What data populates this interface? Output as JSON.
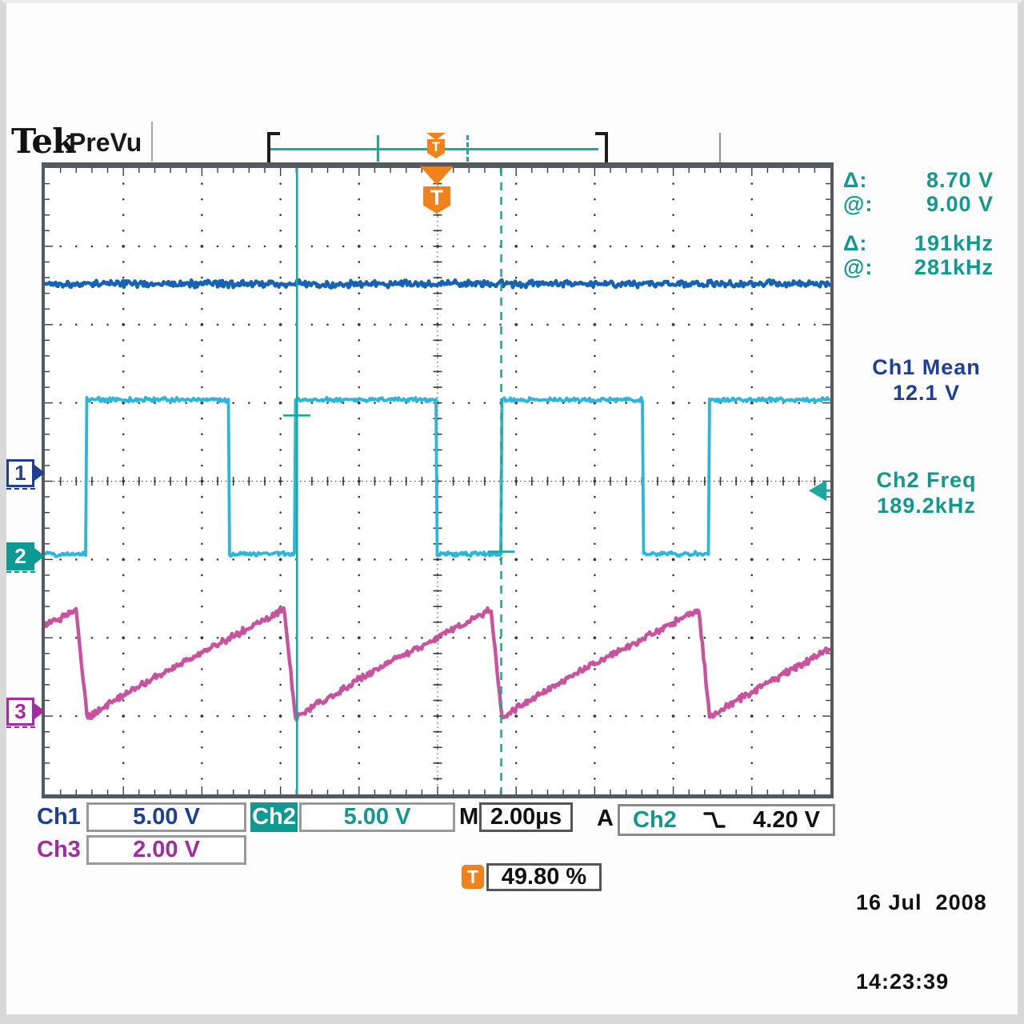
{
  "header": {
    "logo": "Tek",
    "mode": "PreVu"
  },
  "record_view": {
    "trigger_icon": "T"
  },
  "trigger_marker": {
    "icon_label": "T"
  },
  "cursor_readout": {
    "rows": [
      {
        "label": "Δ:",
        "value": "8.70 V"
      },
      {
        "label": "@:",
        "value": "9.00 V"
      },
      {
        "label": "Δ:",
        "value": "191kHz"
      },
      {
        "label": "@:",
        "value": "281kHz"
      }
    ]
  },
  "measurements": [
    {
      "label": "Ch1 Mean",
      "value": "12.1 V"
    },
    {
      "label": "Ch2 Freq",
      "value": "189.2kHz"
    }
  ],
  "left_markers": [
    {
      "label": "1"
    },
    {
      "label": "2"
    },
    {
      "label": "3"
    }
  ],
  "readout_bar": {
    "ch1_label": "Ch1",
    "ch1_scale": "5.00 V",
    "ch2_label": "Ch2",
    "ch2_scale": "5.00 V",
    "ch3_label": "Ch3",
    "ch3_scale": "2.00 V",
    "main_label": "M",
    "main_scale": "2.00µs",
    "trigger_label": "A",
    "trigger_source": "Ch2",
    "trigger_slope_icon": "falling-edge",
    "trigger_level": "4.20 V"
  },
  "trigger_status": {
    "icon_label": "T",
    "position": "49.80 %"
  },
  "datetime": {
    "date": "16 Jul  2008",
    "time": "14:23:39"
  },
  "colors": {
    "ch1_trace": "#1663b5",
    "ch1_text": "#1d3f94",
    "ch2_trace": "#2cb6dc",
    "teal_ui": "#0d9a92",
    "teal_text": "#12998e",
    "ch3_trace": "#c9519e",
    "ch3_text": "#a62ba0",
    "orange": "#f0821e",
    "cursor": "#1aa79c",
    "cursor_dashed": "#23aa90"
  },
  "chart_data": {
    "type": "line",
    "title": "Tek PreVu oscilloscope capture: Ch1 DC rail, Ch2 square wave, Ch3 sawtooth",
    "x_units": "µs",
    "time_per_div_us": 2.0,
    "divisions_x": 10,
    "divisions_y": 8,
    "trigger_position_pct": 49.8,
    "series": [
      {
        "name": "Ch1",
        "kind": "dc",
        "volts_per_div": 5.0,
        "ground_div_below_center": -0.1,
        "level_v": 12.1,
        "noise_v": 0.26,
        "color_key": "ch1_trace"
      },
      {
        "name": "Ch2",
        "kind": "square",
        "volts_per_div": 5.0,
        "ground_div_below_center": 0.96,
        "high_v": 10.0,
        "low_v": 0.15,
        "initial_state": "low",
        "rise_times_us": [
          -8.94,
          -3.62,
          1.62,
          6.92
        ],
        "fall_times_us": [
          -5.3,
          -0.04,
          5.24
        ],
        "frequency_khz": 189.2,
        "noise_v": 0.17,
        "color_key": "ch2_trace"
      },
      {
        "name": "Ch3",
        "kind": "sawtooth",
        "volts_per_div": 2.0,
        "ground_div_below_center": 2.94,
        "peak_v": 2.6,
        "trough_v": -0.18,
        "fall_times_us": [
          -9.2,
          -3.9,
          1.36,
          6.65
        ],
        "fall_duration_us": 0.28,
        "noise_v": 0.1,
        "color_key": "ch3_trace"
      }
    ],
    "cursors": {
      "kind": "vertical-bars",
      "cursor1_t_us": -3.58,
      "cursor2_t_us": 1.62,
      "cursor1_v_on_ch2": 9.0,
      "cursor2_v_on_ch2": 0.3,
      "delta_v": 8.7,
      "at_v": 9.0,
      "delta_freq_khz": 191,
      "at_freq_khz": 281
    },
    "trigger": {
      "source": "Ch2",
      "level_v": 4.2,
      "slope": "falling",
      "position_pct": 49.8
    }
  }
}
